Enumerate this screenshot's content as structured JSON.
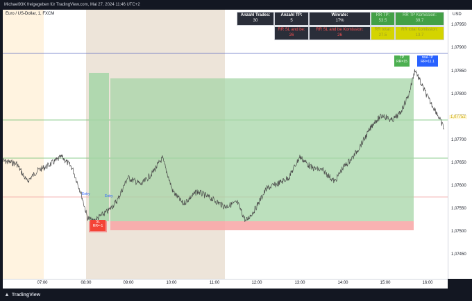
{
  "header": {
    "attribution": "Michael93K freigegeben für TradingView.com, Mai 27, 2024 11:46 UTC+2",
    "symbol": "Euro / US-Dollar, 1, FXCM"
  },
  "footer": {
    "brand": "TradingView"
  },
  "axis": {
    "currency": "USD",
    "price_ticks": [
      "1,07950",
      "1,07900",
      "1,07850",
      "1,07800",
      "1,07750",
      "1,07700",
      "1,07650",
      "1,07600",
      "1,07550",
      "1,07500",
      "1,07450"
    ],
    "current_price": "1,07752",
    "time_ticks": [
      "07:00",
      "08:00",
      "09:00",
      "10:00",
      "11:00",
      "12:00",
      "13:00",
      "14:00",
      "15:00",
      "16:00"
    ]
  },
  "stats": {
    "anzahl_trades_label": "Anzahl Trades:",
    "anzahl_trades_value": "30",
    "anzahl_tp_label": "Anzahl TP:",
    "anzahl_tp_value": "5",
    "winrate_label": "Winrate:",
    "winrate_value": "17%",
    "rr_tp_label": "RR TP:",
    "rr_tp_value": "53.5",
    "rr_tp_komm_label": "RR TP Komission:",
    "rr_tp_komm_value": "39.7",
    "rr_sl_be_label": "RR SL and be:",
    "rr_sl_be_value": "26",
    "rr_sl_be_komm_label": "RR SL and be Komission:",
    "rr_sl_be_komm_value": "26",
    "rr_total_label": "RR total:",
    "rr_total_value": "27.5",
    "rr_total_komm_label": "RR total Komission:",
    "rr_total_komm_value": "13.7"
  },
  "markers": {
    "entry1": "Entry",
    "entry2": "Entry",
    "sl_line1": "SL",
    "sl_line2": "RR=-1",
    "tp_line1": "TP",
    "tp_line2": "RR=15",
    "realtp_line1": "real-TP",
    "realtp_line2": "RR=11.1"
  },
  "colors": {
    "session_orange": "#fff3e0",
    "session_tan": "#ede4d9",
    "profit_zone": "#a5d6a7",
    "loss_zone": "#f8a5a5",
    "price_line": "#555555",
    "tp_box": "#4caf50",
    "realtp_box": "#2962ff",
    "sl_box": "#f44336"
  }
}
